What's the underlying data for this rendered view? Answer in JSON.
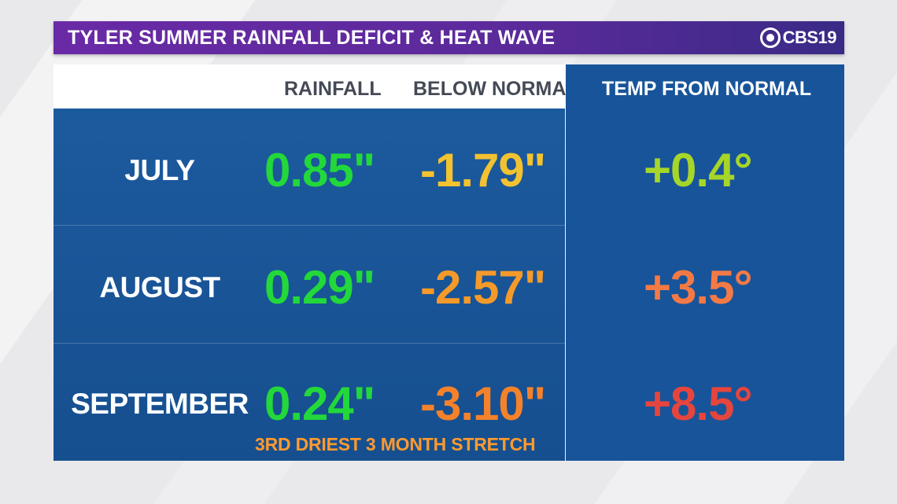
{
  "title": "TYLER SUMMER RAINFALL DEFICIT & HEAT WAVE",
  "logo": {
    "text": "CBS19",
    "icon": "cbs-eye-icon"
  },
  "headers": {
    "rainfall": "RAINFALL",
    "below_normal": "BELOW NORMAL",
    "temp_from_normal": "TEMP FROM NORMAL"
  },
  "rows": [
    {
      "month": "JULY",
      "rainfall": "0.85\"",
      "below_normal": "-1.79\"",
      "temp": "+0.4°",
      "below_color": "#f2c230",
      "temp_color": "#a6d629"
    },
    {
      "month": "AUGUST",
      "rainfall": "0.29\"",
      "below_normal": "-2.57\"",
      "temp": "+3.5°",
      "below_color": "#f59a2a",
      "temp_color": "#f47a45"
    },
    {
      "month": "SEPTEMBER",
      "rainfall": "0.24\"",
      "below_normal": "-3.10\"",
      "temp": "+8.5°",
      "below_color": "#f5822a",
      "temp_color": "#e6453d"
    }
  ],
  "note": "3RD DRIEST 3 MONTH STRETCH",
  "colors": {
    "title_bar": "#5a2a9a",
    "panel": "#18549a",
    "rainfall": "#22d83a",
    "note": "#ff9a2e"
  }
}
